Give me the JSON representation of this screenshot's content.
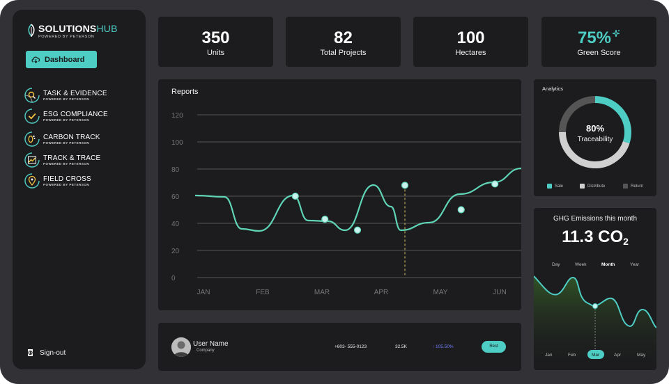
{
  "brand": {
    "name_main": "SOLUTIONS",
    "name_accent": "HUB",
    "tagline": "POWERED BY PETERSON"
  },
  "sidebar": {
    "dashboard_label": "Dashboard",
    "items": [
      {
        "label": "TASK & EVIDENCE",
        "sub": "POWERED BY PETERSON",
        "icon": "search-check-icon"
      },
      {
        "label": "ESG COMPLIANCE",
        "sub": "POWERED BY PETERSON",
        "icon": "check-circle-icon"
      },
      {
        "label": "CARBON TRACK",
        "sub": "POWERED BY PETERSON",
        "icon": "footprint-icon"
      },
      {
        "label": "TRACK & TRACE",
        "sub": "POWERED BY PETERSON",
        "icon": "trend-icon"
      },
      {
        "label": "FIELD CROSS",
        "sub": "POWERED BY PETERSON",
        "icon": "location-pin-icon"
      }
    ],
    "signout_label": "Sign-out"
  },
  "stats": [
    {
      "value": "350",
      "label": "Units"
    },
    {
      "value": "82",
      "label": "Total Projects"
    },
    {
      "value": "100",
      "label": "Hectares"
    },
    {
      "value": "75%",
      "label": "Green Score"
    }
  ],
  "colors": {
    "accent": "#4ecdc4",
    "card": "#1c1c1e",
    "frame": "#323236",
    "growth": "#6f7fff"
  },
  "reports": {
    "title": "Reports",
    "chart_data": {
      "type": "line",
      "x": [
        "JAN",
        "FEB",
        "MAR",
        "APR",
        "MAY",
        "JUN"
      ],
      "y_ticks": [
        0,
        20,
        40,
        60,
        80,
        100,
        120
      ],
      "ylim": [
        0,
        120
      ],
      "points": [
        {
          "x": 0.0,
          "y": 61
        },
        {
          "x": 1.55,
          "y": 60
        },
        {
          "x": 2.05,
          "y": 43
        },
        {
          "x": 2.6,
          "y": 35
        },
        {
          "x": 3.4,
          "y": 68
        },
        {
          "x": 4.35,
          "y": 50
        },
        {
          "x": 4.92,
          "y": 69
        }
      ],
      "highlight_index": 4,
      "grid": true
    }
  },
  "analytics": {
    "title": "Analytics",
    "percent_label": "80%",
    "caption": "Traceability",
    "chart_data": {
      "type": "pie",
      "labels": [
        "Sale",
        "Distribute",
        "Return"
      ],
      "values": [
        30,
        45,
        25
      ],
      "colors": [
        "#4ecdc4",
        "#d0d0d0",
        "#555555"
      ]
    }
  },
  "ghg": {
    "title": "GHG Emissions this month",
    "value": "11.3 CO",
    "value_sub": "2",
    "periods": [
      "Day",
      "Week",
      "Month",
      "Year"
    ],
    "active_period": "Month",
    "months": [
      "Jan",
      "Feb",
      "Mar",
      "Apr",
      "May"
    ],
    "active_month": "Mar",
    "chart_data": {
      "type": "area",
      "x": [
        "Jan",
        "Feb",
        "Mar",
        "Apr",
        "May"
      ],
      "highlight_month": "Mar"
    }
  },
  "user": {
    "name": "User Name",
    "company": "Company",
    "phone": "+603- 555-0123",
    "count": "32.5K",
    "growth": "↑ 105.50%",
    "button": "Rest"
  }
}
